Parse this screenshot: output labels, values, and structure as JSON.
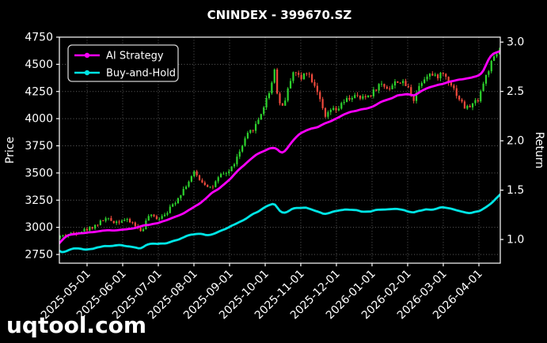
{
  "title": "CNINDEX - 399670.SZ",
  "watermark": {
    "text": "uqtool.com",
    "color": "#8e1a9e"
  },
  "legend": {
    "items": [
      {
        "label": "AI Strategy",
        "color": "#ff00ff"
      },
      {
        "label": "Buy-and-Hold",
        "color": "#00e5e5"
      }
    ]
  },
  "chart_data": {
    "type": "candlestick_with_lines",
    "title": "CNINDEX - 399670.SZ",
    "grid": "dotted",
    "background": "#000000",
    "frame_color": "#ffffff",
    "x_axis": {
      "tick_labels": [
        "2025-05-01",
        "2025-06-01",
        "2025-07-01",
        "2025-08-01",
        "2025-09-01",
        "2025-10-01",
        "2025-11-01",
        "2025-12-01",
        "2026-01-01",
        "2026-02-01",
        "2026-03-01",
        "2026-04-01"
      ],
      "tick_positions": [
        0.0628,
        0.1436,
        0.2244,
        0.3052,
        0.386,
        0.4668,
        0.5475,
        0.6283,
        0.7091,
        0.7899,
        0.8707,
        0.9515
      ]
    },
    "left_axis": {
      "label": "Price",
      "ticks": [
        2750,
        3000,
        3250,
        3500,
        3750,
        4000,
        4250,
        4500,
        4750
      ],
      "range": [
        2670,
        4750
      ]
    },
    "right_axis": {
      "label": "Return",
      "ticks": [
        1.0,
        1.5,
        2.0,
        2.5,
        3.0
      ],
      "tick_labels": [
        "1.0",
        "1.5",
        "2.0",
        "2.5",
        "3.0"
      ],
      "range": [
        0.76,
        3.05
      ]
    },
    "series": [
      {
        "name": "AI Strategy",
        "style": "line",
        "axis": "return",
        "color": "#ff00ff",
        "points": [
          [
            0,
            0.97
          ],
          [
            0.02,
            1.05
          ],
          [
            0.063,
            1.07
          ],
          [
            0.1,
            1.09
          ],
          [
            0.144,
            1.1
          ],
          [
            0.17,
            1.11
          ],
          [
            0.2,
            1.15
          ],
          [
            0.224,
            1.17
          ],
          [
            0.26,
            1.22
          ],
          [
            0.287,
            1.28
          ],
          [
            0.305,
            1.33
          ],
          [
            0.33,
            1.4
          ],
          [
            0.345,
            1.47
          ],
          [
            0.364,
            1.52
          ],
          [
            0.386,
            1.6
          ],
          [
            0.41,
            1.72
          ],
          [
            0.425,
            1.78
          ],
          [
            0.447,
            1.86
          ],
          [
            0.467,
            1.9
          ],
          [
            0.48,
            1.93
          ],
          [
            0.497,
            1.93
          ],
          [
            0.503,
            1.86
          ],
          [
            0.512,
            1.88
          ],
          [
            0.528,
            2.0
          ],
          [
            0.548,
            2.08
          ],
          [
            0.57,
            2.12
          ],
          [
            0.59,
            2.14
          ],
          [
            0.602,
            2.18
          ],
          [
            0.628,
            2.22
          ],
          [
            0.648,
            2.27
          ],
          [
            0.668,
            2.3
          ],
          [
            0.69,
            2.32
          ],
          [
            0.709,
            2.34
          ],
          [
            0.73,
            2.4
          ],
          [
            0.749,
            2.43
          ],
          [
            0.768,
            2.46
          ],
          [
            0.79,
            2.48
          ],
          [
            0.805,
            2.45
          ],
          [
            0.82,
            2.5
          ],
          [
            0.838,
            2.54
          ],
          [
            0.853,
            2.56
          ],
          [
            0.871,
            2.58
          ],
          [
            0.889,
            2.6
          ],
          [
            0.906,
            2.62
          ],
          [
            0.923,
            2.63
          ],
          [
            0.938,
            2.64
          ],
          [
            0.951,
            2.66
          ],
          [
            0.963,
            2.7
          ],
          [
            0.972,
            2.82
          ],
          [
            0.98,
            2.88
          ],
          [
            0.99,
            2.89
          ],
          [
            1,
            2.91
          ]
        ]
      },
      {
        "name": "Buy-and-Hold",
        "style": "line",
        "axis": "return",
        "color": "#00e5e5",
        "points": [
          [
            0,
            0.88
          ],
          [
            0.005,
            0.855
          ],
          [
            0.027,
            0.91
          ],
          [
            0.063,
            0.9
          ],
          [
            0.09,
            0.92
          ],
          [
            0.102,
            0.945
          ],
          [
            0.125,
            0.93
          ],
          [
            0.144,
            0.94
          ],
          [
            0.165,
            0.93
          ],
          [
            0.185,
            0.91
          ],
          [
            0.201,
            0.955
          ],
          [
            0.224,
            0.95
          ],
          [
            0.247,
            0.97
          ],
          [
            0.264,
            0.995
          ],
          [
            0.287,
            1.03
          ],
          [
            0.305,
            1.05
          ],
          [
            0.323,
            1.06
          ],
          [
            0.345,
            1.04
          ],
          [
            0.364,
            1.08
          ],
          [
            0.386,
            1.12
          ],
          [
            0.404,
            1.17
          ],
          [
            0.425,
            1.22
          ],
          [
            0.447,
            1.27
          ],
          [
            0.467,
            1.33
          ],
          [
            0.48,
            1.36
          ],
          [
            0.489,
            1.38
          ],
          [
            0.497,
            1.3
          ],
          [
            0.504,
            1.25
          ],
          [
            0.512,
            1.27
          ],
          [
            0.528,
            1.31
          ],
          [
            0.54,
            1.33
          ],
          [
            0.548,
            1.31
          ],
          [
            0.56,
            1.33
          ],
          [
            0.575,
            1.3
          ],
          [
            0.59,
            1.28
          ],
          [
            0.602,
            1.25
          ],
          [
            0.614,
            1.28
          ],
          [
            0.628,
            1.29
          ],
          [
            0.648,
            1.31
          ],
          [
            0.668,
            1.3
          ],
          [
            0.686,
            1.28
          ],
          [
            0.709,
            1.29
          ],
          [
            0.728,
            1.31
          ],
          [
            0.749,
            1.3
          ],
          [
            0.768,
            1.31
          ],
          [
            0.79,
            1.29
          ],
          [
            0.805,
            1.27
          ],
          [
            0.82,
            1.3
          ],
          [
            0.838,
            1.31
          ],
          [
            0.853,
            1.3
          ],
          [
            0.871,
            1.33
          ],
          [
            0.889,
            1.31
          ],
          [
            0.906,
            1.29
          ],
          [
            0.923,
            1.26
          ],
          [
            0.938,
            1.27
          ],
          [
            0.951,
            1.28
          ],
          [
            0.963,
            1.32
          ],
          [
            0.972,
            1.34
          ],
          [
            0.983,
            1.38
          ],
          [
            1,
            1.45
          ]
        ]
      },
      {
        "name": "CNINDEX daily candles",
        "style": "candlestick",
        "axis": "price",
        "up_color": "#2dd22d",
        "down_color": "#ef4a3c",
        "candle_count": 165,
        "close_path": [
          [
            0,
            2915
          ],
          [
            0.028,
            2945
          ],
          [
            0.063,
            2985
          ],
          [
            0.085,
            3030
          ],
          [
            0.102,
            3080
          ],
          [
            0.125,
            3050
          ],
          [
            0.144,
            3070
          ],
          [
            0.165,
            3040
          ],
          [
            0.185,
            2960
          ],
          [
            0.201,
            3105
          ],
          [
            0.224,
            3085
          ],
          [
            0.247,
            3160
          ],
          [
            0.264,
            3250
          ],
          [
            0.287,
            3390
          ],
          [
            0.305,
            3500
          ],
          [
            0.323,
            3420
          ],
          [
            0.345,
            3360
          ],
          [
            0.364,
            3470
          ],
          [
            0.386,
            3520
          ],
          [
            0.404,
            3650
          ],
          [
            0.425,
            3840
          ],
          [
            0.447,
            3950
          ],
          [
            0.467,
            4150
          ],
          [
            0.48,
            4300
          ],
          [
            0.489,
            4480
          ],
          [
            0.496,
            4150
          ],
          [
            0.507,
            4120
          ],
          [
            0.52,
            4280
          ],
          [
            0.528,
            4440
          ],
          [
            0.54,
            4410
          ],
          [
            0.548,
            4350
          ],
          [
            0.557,
            4460
          ],
          [
            0.575,
            4350
          ],
          [
            0.59,
            4220
          ],
          [
            0.602,
            3990
          ],
          [
            0.614,
            4080
          ],
          [
            0.628,
            4070
          ],
          [
            0.648,
            4160
          ],
          [
            0.668,
            4210
          ],
          [
            0.686,
            4180
          ],
          [
            0.709,
            4230
          ],
          [
            0.728,
            4320
          ],
          [
            0.749,
            4280
          ],
          [
            0.768,
            4350
          ],
          [
            0.79,
            4300
          ],
          [
            0.805,
            4180
          ],
          [
            0.82,
            4330
          ],
          [
            0.838,
            4420
          ],
          [
            0.853,
            4380
          ],
          [
            0.871,
            4420
          ],
          [
            0.889,
            4330
          ],
          [
            0.906,
            4200
          ],
          [
            0.923,
            4090
          ],
          [
            0.938,
            4130
          ],
          [
            0.951,
            4180
          ],
          [
            0.963,
            4320
          ],
          [
            0.972,
            4420
          ],
          [
            0.983,
            4520
          ],
          [
            1,
            4630
          ]
        ]
      }
    ]
  }
}
